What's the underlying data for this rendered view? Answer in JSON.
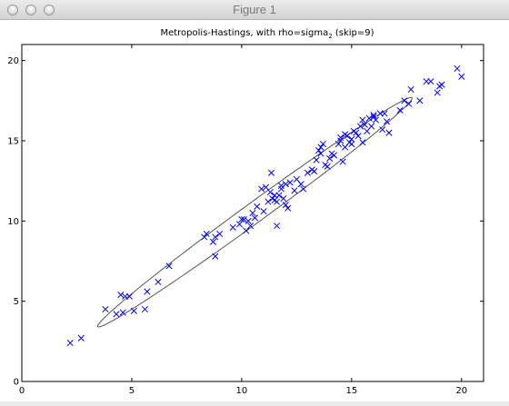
{
  "window": {
    "title": "Figure 1"
  },
  "chart_data": {
    "type": "scatter",
    "title_main": "Metropolis-Hastings, with rho=sigma",
    "title_sub": "2",
    "title_tail": " (skip=9)",
    "xlabel": "",
    "ylabel": "",
    "xlim": [
      0,
      21
    ],
    "ylim": [
      0,
      21
    ],
    "x_ticks": [
      0,
      5,
      10,
      15,
      20
    ],
    "y_ticks": [
      0,
      5,
      10,
      15,
      20
    ],
    "marker": "x",
    "marker_color": "#0000ff",
    "ellipse": {
      "cx": 10.6,
      "cy": 10.55,
      "a": 10.1,
      "b": 0.55,
      "angle_deg": 45.0,
      "color": "#555555"
    },
    "series": [
      {
        "x": [
          2.2,
          2.7,
          3.8,
          4.3,
          4.5,
          4.6,
          4.7,
          4.9,
          5.1,
          5.6,
          5.7,
          6.2,
          6.7,
          8.3,
          8.4,
          8.7,
          8.8,
          8.8,
          9.0,
          9.6,
          9.9,
          10.0,
          10.1,
          10.2,
          10.3,
          10.4,
          10.5,
          10.6,
          10.7,
          10.9,
          11.0,
          11.1,
          11.2,
          11.3,
          11.35,
          11.4,
          11.5,
          11.5,
          11.6,
          11.6,
          11.7,
          11.8,
          11.8,
          11.9,
          12.0,
          12.0,
          12.1,
          12.2,
          12.4,
          12.5,
          12.7,
          12.8,
          13.0,
          13.2,
          13.3,
          13.4,
          13.5,
          13.6,
          13.6,
          13.7,
          13.8,
          13.9,
          14.0,
          14.1,
          14.2,
          14.4,
          14.5,
          14.5,
          14.6,
          14.7,
          14.7,
          14.8,
          14.9,
          15.0,
          15.0,
          15.1,
          15.2,
          15.3,
          15.4,
          15.5,
          15.5,
          15.6,
          15.7,
          15.8,
          15.9,
          16.0,
          16.0,
          16.1,
          16.3,
          16.4,
          16.5,
          16.6,
          16.7,
          17.2,
          17.4,
          17.6,
          17.7,
          18.1,
          18.4,
          18.6,
          18.9,
          19.0,
          19.1,
          19.8,
          20.0
        ],
        "y": [
          2.4,
          2.7,
          4.5,
          4.2,
          5.4,
          4.3,
          5.3,
          5.3,
          4.4,
          4.5,
          5.6,
          6.2,
          7.2,
          9.0,
          9.2,
          8.7,
          9.0,
          7.8,
          9.2,
          9.6,
          9.8,
          10.1,
          10.1,
          9.4,
          10.0,
          9.7,
          10.5,
          10.2,
          10.9,
          12.0,
          10.6,
          12.1,
          11.2,
          11.8,
          13.0,
          11.4,
          11.6,
          11.3,
          9.7,
          11.2,
          11.6,
          12.2,
          12.0,
          11.4,
          11.0,
          12.3,
          10.8,
          12.4,
          11.9,
          12.6,
          12.3,
          12.0,
          13.0,
          13.2,
          13.1,
          13.8,
          14.4,
          14.6,
          14.2,
          14.8,
          13.5,
          13.4,
          13.9,
          14.2,
          14.1,
          14.8,
          15.2,
          15.0,
          13.7,
          15.4,
          14.6,
          15.3,
          14.9,
          15.1,
          14.8,
          15.6,
          15.5,
          15.3,
          15.9,
          14.9,
          16.3,
          16.0,
          15.6,
          16.4,
          15.9,
          16.5,
          16.6,
          16.3,
          16.7,
          15.7,
          16.7,
          16.2,
          15.5,
          16.9,
          17.5,
          17.3,
          18.2,
          17.5,
          18.7,
          18.7,
          18.0,
          18.4,
          18.5,
          19.5,
          19.0
        ]
      }
    ]
  }
}
